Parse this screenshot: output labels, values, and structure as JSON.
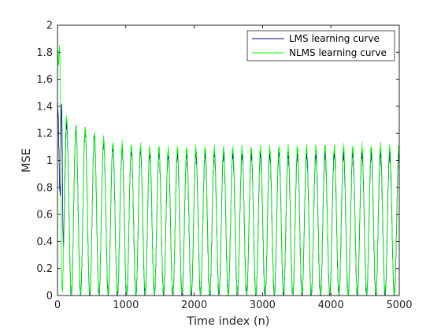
{
  "chart_data": {
    "type": "line",
    "title": "",
    "xlabel": "Time index (n)",
    "ylabel": "MSE",
    "xlim": [
      0,
      5000
    ],
    "ylim": [
      0,
      2
    ],
    "xticks": [
      0,
      1000,
      2000,
      3000,
      4000,
      5000
    ],
    "xtick_labels": [
      "0",
      "1000",
      "2000",
      "3000",
      "4000",
      "5000"
    ],
    "yticks": [
      0,
      0.2,
      0.4,
      0.6,
      0.8,
      1,
      1.2,
      1.4,
      1.6,
      1.8,
      2
    ],
    "ytick_labels": [
      "0",
      "0.2",
      "0.4",
      "0.6",
      "0.8",
      "1",
      "1.2",
      "1.4",
      "1.6",
      "1.8",
      "2"
    ],
    "grid": false,
    "legend_position": "top-right",
    "series": [
      {
        "name": "LMS learning curve",
        "color": "#00008b",
        "model": {
          "kind": "periodic-oscillation",
          "period": 135,
          "min": 0.0,
          "max_envelope": [
            [
              0,
              1.42
            ],
            [
              150,
              1.25
            ],
            [
              400,
              1.22
            ],
            [
              800,
              1.1
            ],
            [
              1500,
              1.05
            ],
            [
              5000,
              1.05
            ]
          ],
          "initial_peak": {
            "x": 60,
            "y": 1.42
          },
          "samples": 5000
        }
      },
      {
        "name": "NLMS learning curve",
        "color": "#00ff00",
        "model": {
          "kind": "periodic-oscillation",
          "period": 135,
          "min": 0.02,
          "max_envelope": [
            [
              0,
              1.85
            ],
            [
              150,
              1.25
            ],
            [
              400,
              1.22
            ],
            [
              800,
              1.12
            ],
            [
              1500,
              1.08
            ],
            [
              5000,
              1.1
            ]
          ],
          "initial_peak": {
            "x": 30,
            "y": 1.85
          },
          "samples": 5000
        }
      }
    ]
  }
}
